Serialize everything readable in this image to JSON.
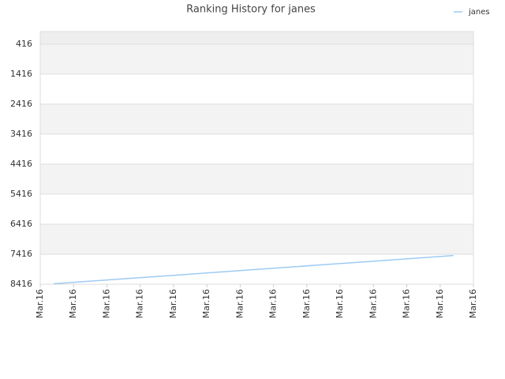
{
  "chart_data": {
    "type": "line",
    "title": "Ranking History for janes",
    "x": [
      0.4,
      1.4,
      2.4,
      3.4,
      4.4,
      5.4,
      6.4,
      7.4,
      8.4,
      9.4,
      10.4,
      11.4,
      12.4
    ],
    "series": [
      {
        "name": "janes",
        "color": "#9ecbf2",
        "values": [
          8400,
          8322,
          8243,
          8165,
          8087,
          8008,
          7930,
          7852,
          7773,
          7695,
          7617,
          7538,
          7460
        ]
      }
    ],
    "xlim": [
      0,
      13
    ],
    "xticks": [
      {
        "value": 0,
        "label": "Mar.16"
      },
      {
        "value": 1,
        "label": "Mar.16"
      },
      {
        "value": 2,
        "label": "Mar.16"
      },
      {
        "value": 3,
        "label": "Mar.16"
      },
      {
        "value": 4,
        "label": "Mar.16"
      },
      {
        "value": 5,
        "label": "Mar.16"
      },
      {
        "value": 6,
        "label": "Mar.16"
      },
      {
        "value": 7,
        "label": "Mar.16"
      },
      {
        "value": 8,
        "label": "Mar.16"
      },
      {
        "value": 9,
        "label": "Mar.16"
      },
      {
        "value": 10,
        "label": "Mar.16"
      },
      {
        "value": 11,
        "label": "Mar.16"
      },
      {
        "value": 12,
        "label": "Mar.16"
      },
      {
        "value": 13,
        "label": "Mar.16"
      }
    ],
    "ylim": [
      8416,
      0
    ],
    "yticks": [
      416,
      1416,
      2416,
      3416,
      4416,
      5416,
      6416,
      7416,
      8416
    ],
    "grid": true,
    "legend": "top-right"
  }
}
